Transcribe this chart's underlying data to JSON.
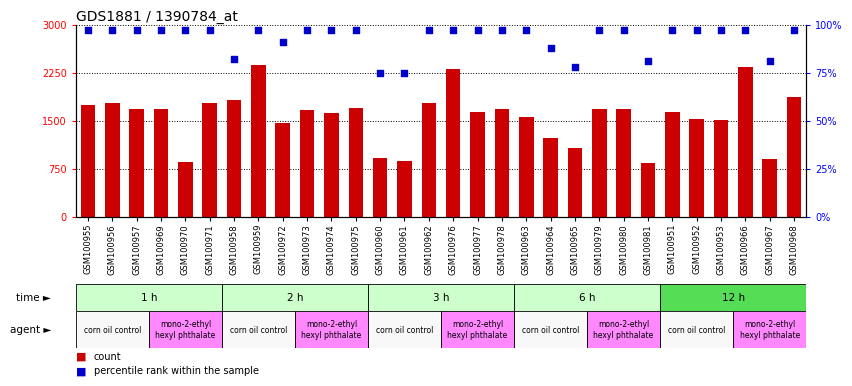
{
  "title": "GDS1881 / 1390784_at",
  "samples": [
    "GSM100955",
    "GSM100956",
    "GSM100957",
    "GSM100969",
    "GSM100970",
    "GSM100971",
    "GSM100958",
    "GSM100959",
    "GSM100972",
    "GSM100973",
    "GSM100974",
    "GSM100975",
    "GSM100960",
    "GSM100961",
    "GSM100962",
    "GSM100976",
    "GSM100977",
    "GSM100978",
    "GSM100963",
    "GSM100964",
    "GSM100965",
    "GSM100979",
    "GSM100980",
    "GSM100981",
    "GSM100951",
    "GSM100952",
    "GSM100953",
    "GSM100966",
    "GSM100967",
    "GSM100968"
  ],
  "counts": [
    1750,
    1780,
    1680,
    1680,
    855,
    1780,
    1820,
    2370,
    1460,
    1660,
    1620,
    1700,
    920,
    870,
    1780,
    2300,
    1640,
    1680,
    1550,
    1230,
    1080,
    1680,
    1680,
    840,
    1640,
    1530,
    1510,
    2340,
    900,
    1870
  ],
  "percentiles": [
    97,
    97,
    97,
    97,
    97,
    97,
    82,
    97,
    91,
    97,
    97,
    97,
    75,
    75,
    97,
    97,
    97,
    97,
    97,
    88,
    78,
    97,
    97,
    81,
    97,
    97,
    97,
    97,
    81,
    97
  ],
  "ylim_left": [
    0,
    3000
  ],
  "ylim_right": [
    0,
    100
  ],
  "yticks_left": [
    0,
    750,
    1500,
    2250,
    3000
  ],
  "yticks_right": [
    0,
    25,
    50,
    75,
    100
  ],
  "bar_color": "#cc0000",
  "dot_color": "#0000cc",
  "time_groups": [
    {
      "label": "1 h",
      "start": 0,
      "end": 6,
      "color": "#ccffcc"
    },
    {
      "label": "2 h",
      "start": 6,
      "end": 12,
      "color": "#ccffcc"
    },
    {
      "label": "3 h",
      "start": 12,
      "end": 18,
      "color": "#ccffcc"
    },
    {
      "label": "6 h",
      "start": 18,
      "end": 24,
      "color": "#ccffcc"
    },
    {
      "label": "12 h",
      "start": 24,
      "end": 30,
      "color": "#55dd55"
    }
  ],
  "agent_groups": [
    {
      "label": "corn oil control",
      "start": 0,
      "end": 3,
      "color": "#f8f8f8"
    },
    {
      "label": "mono-2-ethyl\nhexyl phthalate",
      "start": 3,
      "end": 6,
      "color": "#ff88ff"
    },
    {
      "label": "corn oil control",
      "start": 6,
      "end": 9,
      "color": "#f8f8f8"
    },
    {
      "label": "mono-2-ethyl\nhexyl phthalate",
      "start": 9,
      "end": 12,
      "color": "#ff88ff"
    },
    {
      "label": "corn oil control",
      "start": 12,
      "end": 15,
      "color": "#f8f8f8"
    },
    {
      "label": "mono-2-ethyl\nhexyl phthalate",
      "start": 15,
      "end": 18,
      "color": "#ff88ff"
    },
    {
      "label": "corn oil control",
      "start": 18,
      "end": 21,
      "color": "#f8f8f8"
    },
    {
      "label": "mono-2-ethyl\nhexyl phthalate",
      "start": 21,
      "end": 24,
      "color": "#ff88ff"
    },
    {
      "label": "corn oil control",
      "start": 24,
      "end": 27,
      "color": "#f8f8f8"
    },
    {
      "label": "mono-2-ethyl\nhexyl phthalate",
      "start": 27,
      "end": 30,
      "color": "#ff88ff"
    }
  ],
  "bg_color": "#ffffff",
  "title_fontsize": 10,
  "tick_fontsize": 6,
  "annot_fontsize": 7.5,
  "legend_fontsize": 7
}
